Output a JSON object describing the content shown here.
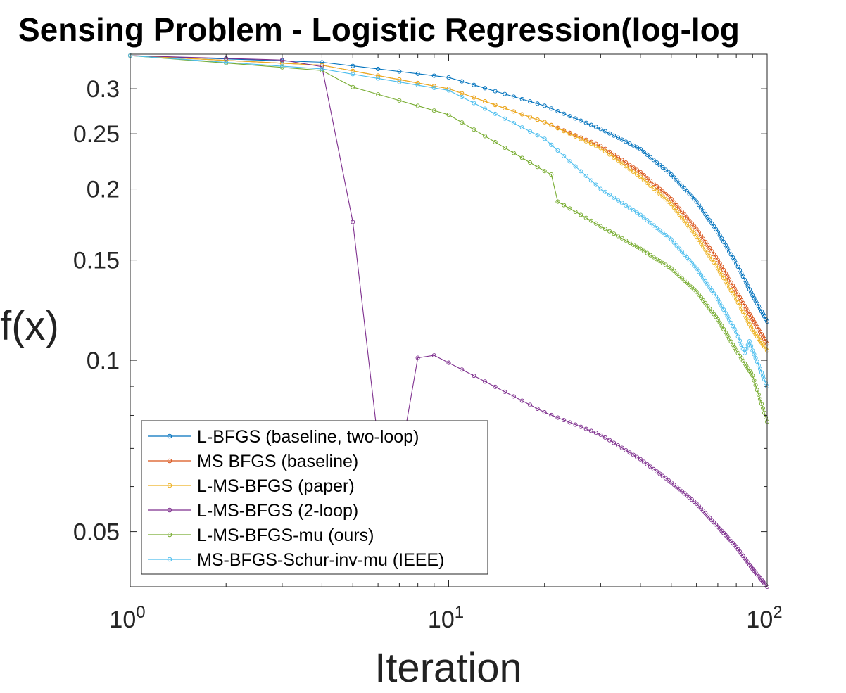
{
  "chart_data": {
    "type": "line",
    "title": "Sensing Problem - Logistic Regression(log-log",
    "xlabel": "Iteration",
    "ylabel": "f(x)",
    "xscale": "log",
    "yscale": "log",
    "xlim": [
      1,
      100
    ],
    "ylim": [
      0.04,
      0.345
    ],
    "xticks": [
      1,
      10,
      100
    ],
    "xtick_labels": [
      {
        "base": "10",
        "exp": "0"
      },
      {
        "base": "10",
        "exp": "1"
      },
      {
        "base": "10",
        "exp": "2"
      }
    ],
    "yticks": [
      0.05,
      0.1,
      0.15,
      0.2,
      0.25,
      0.3
    ],
    "ytick_labels": [
      "0.05",
      "0.1",
      "0.15",
      "0.2",
      "0.25",
      "0.3"
    ],
    "grid": false,
    "box": true,
    "legend_position": "bottom-left",
    "marker": "open-circle",
    "series": [
      {
        "name": "L-BFGS (baseline, two-loop)",
        "color": "#0072BD",
        "points": [
          [
            1,
            0.343
          ],
          [
            4,
            0.334
          ],
          [
            10,
            0.314
          ],
          [
            20,
            0.28
          ],
          [
            30,
            0.255
          ],
          [
            40,
            0.235
          ],
          [
            50,
            0.212
          ],
          [
            60,
            0.19
          ],
          [
            70,
            0.168
          ],
          [
            80,
            0.148
          ],
          [
            90,
            0.13
          ],
          [
            100,
            0.117
          ]
        ]
      },
      {
        "name": "MS BFGS (baseline)",
        "color": "#D95319",
        "points": [
          [
            1,
            0.343
          ],
          [
            4,
            0.33
          ],
          [
            10,
            0.3
          ],
          [
            20,
            0.262
          ],
          [
            30,
            0.238
          ],
          [
            40,
            0.214
          ],
          [
            50,
            0.192
          ],
          [
            60,
            0.17
          ],
          [
            70,
            0.15
          ],
          [
            80,
            0.132
          ],
          [
            90,
            0.118
          ],
          [
            100,
            0.107
          ]
        ]
      },
      {
        "name": "L-MS-BFGS (paper)",
        "color": "#EDB120",
        "points": [
          [
            1,
            0.343
          ],
          [
            4,
            0.33
          ],
          [
            10,
            0.3
          ],
          [
            20,
            0.262
          ],
          [
            30,
            0.236
          ],
          [
            40,
            0.21
          ],
          [
            50,
            0.188
          ],
          [
            60,
            0.165
          ],
          [
            70,
            0.145
          ],
          [
            80,
            0.128
          ],
          [
            90,
            0.113
          ],
          [
            100,
            0.104
          ]
        ]
      },
      {
        "name": "L-MS-BFGS (2-loop)",
        "color": "#7E2F8E",
        "points": [
          [
            1,
            0.343
          ],
          [
            3,
            0.337
          ],
          [
            4,
            0.328
          ],
          [
            5,
            0.175
          ],
          [
            5.5,
            0.11
          ],
          [
            6,
            0.072
          ],
          [
            7.2,
            0.072
          ],
          [
            8,
            0.101
          ],
          [
            9,
            0.102
          ],
          [
            10,
            0.099
          ],
          [
            20,
            0.081
          ],
          [
            30,
            0.074
          ],
          [
            40,
            0.067
          ],
          [
            50,
            0.061
          ],
          [
            60,
            0.056
          ],
          [
            70,
            0.051
          ],
          [
            80,
            0.047
          ],
          [
            90,
            0.043
          ],
          [
            100,
            0.04
          ]
        ]
      },
      {
        "name": "L-MS-BFGS-mu (ours)",
        "color": "#77AC30",
        "points": [
          [
            1,
            0.343
          ],
          [
            4,
            0.323
          ],
          [
            5,
            0.302
          ],
          [
            10,
            0.27
          ],
          [
            20,
            0.215
          ],
          [
            21,
            0.212
          ],
          [
            22,
            0.19
          ],
          [
            30,
            0.172
          ],
          [
            40,
            0.157
          ],
          [
            50,
            0.145
          ],
          [
            60,
            0.132
          ],
          [
            70,
            0.118
          ],
          [
            80,
            0.104
          ],
          [
            90,
            0.094
          ],
          [
            100,
            0.078
          ]
        ]
      },
      {
        "name": "MS-BFGS-Schur-inv-mu (IEEE)",
        "color": "#4DBEEE",
        "points": [
          [
            1,
            0.343
          ],
          [
            4,
            0.325
          ],
          [
            10,
            0.298
          ],
          [
            20,
            0.245
          ],
          [
            30,
            0.2
          ],
          [
            40,
            0.18
          ],
          [
            50,
            0.163
          ],
          [
            60,
            0.145
          ],
          [
            70,
            0.128
          ],
          [
            80,
            0.112
          ],
          [
            85,
            0.103
          ],
          [
            88,
            0.108
          ],
          [
            90,
            0.104
          ],
          [
            100,
            0.09
          ]
        ]
      }
    ]
  }
}
